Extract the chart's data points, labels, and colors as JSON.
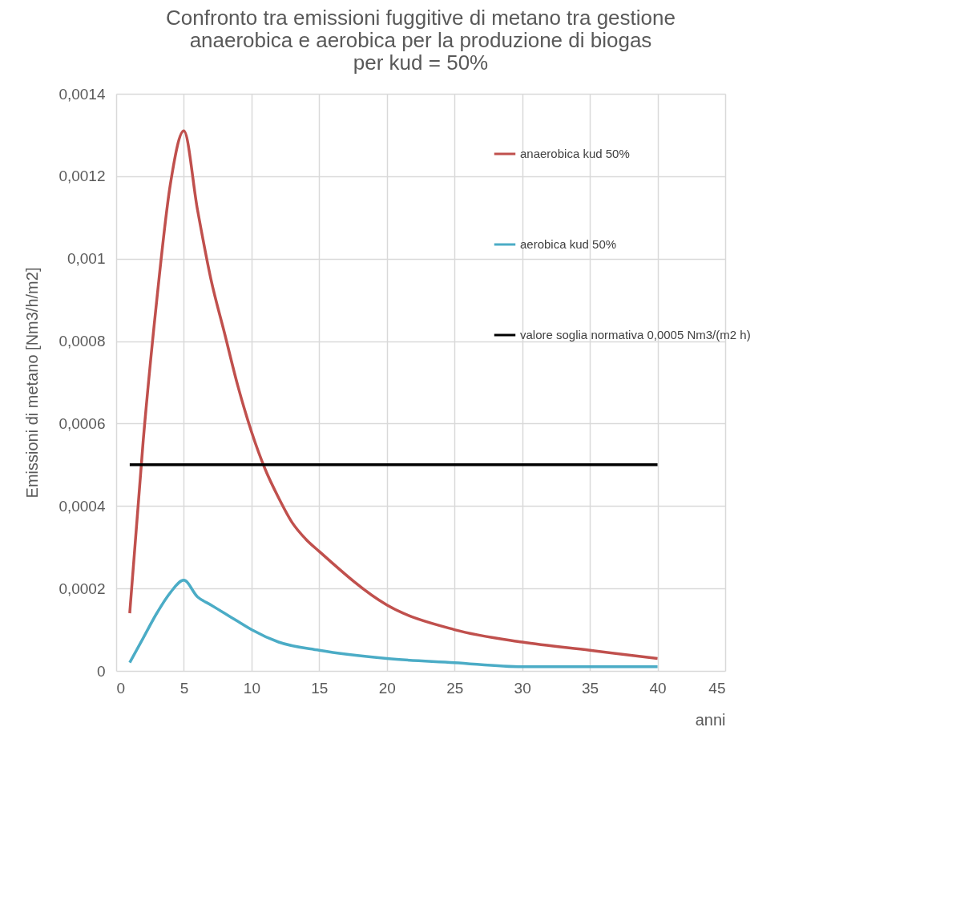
{
  "chart_data": {
    "type": "line",
    "title": "Confronto tra emissioni fuggitive di metano tra gestione\nanaerobica e aerobica per la produzione di biogas\nper kud = 50%",
    "xlabel": "anni",
    "ylabel": "Emissioni di metano [Nm3/h/m2]",
    "xlim": [
      0,
      45
    ],
    "xticks": [
      0,
      5,
      10,
      15,
      20,
      25,
      30,
      35,
      40,
      45
    ],
    "ylim": [
      0,
      0.0014
    ],
    "yticks": [
      0,
      {
        "value": 0.0002,
        "label": "0,0002"
      },
      {
        "value": 0.0004,
        "label": "0,0004"
      },
      {
        "value": 0.0006,
        "label": "0,0006"
      },
      {
        "value": 0.0008,
        "label": "0,0008"
      },
      {
        "value": 0.001,
        "label": "0,001"
      },
      {
        "value": 0.0012,
        "label": "0,0012"
      },
      {
        "value": 0.0014,
        "label": "0,0014"
      }
    ],
    "grid": true,
    "legend": "top right",
    "series": [
      {
        "name": "anaerobica kud 50%",
        "color": "#c0504d",
        "x": [
          1,
          2,
          3,
          4,
          5,
          6,
          7,
          8,
          9,
          10,
          11,
          12,
          13,
          14,
          15,
          20,
          25,
          30,
          35,
          40
        ],
        "values": [
          0.00014,
          0.00056,
          0.0009,
          0.00118,
          0.00131,
          0.00112,
          0.00095,
          0.00082,
          0.00069,
          0.00058,
          0.00049,
          0.00042,
          0.00036,
          0.00032,
          0.00029,
          0.00016,
          0.0001,
          7e-05,
          5e-05,
          3e-05
        ]
      },
      {
        "name": "aerobica kud 50%",
        "color": "#4bacc6",
        "x": [
          1,
          2,
          3,
          4,
          5,
          6,
          7,
          8,
          9,
          10,
          12,
          15,
          20,
          25,
          30,
          35,
          40
        ],
        "values": [
          2e-05,
          8e-05,
          0.00014,
          0.00019,
          0.00022,
          0.00018,
          0.00016,
          0.00014,
          0.00012,
          0.0001,
          7e-05,
          5e-05,
          3e-05,
          2e-05,
          1e-05,
          1e-05,
          1e-05
        ]
      },
      {
        "name": "valore soglia normativa 0,0005 Nm3/(m2 h)",
        "color": "#000000",
        "x": [
          1,
          40
        ],
        "values": [
          0.0005,
          0.0005
        ]
      }
    ]
  }
}
